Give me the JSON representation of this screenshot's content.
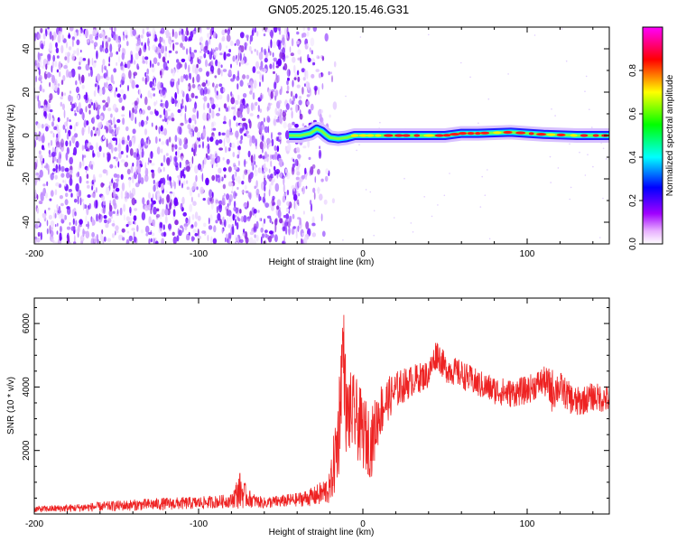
{
  "title": "GN05.2025.120.15.46.G31",
  "chart_data": [
    {
      "type": "heatmap",
      "xlabel": "Height of straight line (km)",
      "ylabel": "Frequency (Hz)",
      "xlim": [
        -200,
        150
      ],
      "ylim": [
        -50,
        50
      ],
      "xticks": [
        -200,
        -100,
        0,
        100
      ],
      "yticks": [
        -40,
        -20,
        0,
        20,
        40
      ],
      "colorbar": {
        "label": "Normalized spectral amplitude",
        "range": [
          0,
          1
        ],
        "ticks": [
          "0.0",
          "0.2",
          "0.4",
          "0.6",
          "0.8"
        ],
        "colormap": [
          "#ffffff",
          "#c000ff",
          "#0000ff",
          "#00ffff",
          "#00ff00",
          "#ffff00",
          "#ff0000",
          "#ff00ff"
        ]
      },
      "noise_region_x": [
        -200,
        -15
      ],
      "signal_trace": {
        "x": [
          -45,
          -38,
          -35,
          -32,
          -30,
          -28,
          -25,
          -22,
          -20,
          -15,
          -10,
          -5,
          0,
          10,
          30,
          50,
          60,
          70,
          90,
          110,
          130,
          150
        ],
        "y": [
          0,
          0,
          0.5,
          1,
          2,
          3,
          2,
          0,
          -1,
          -1.5,
          -1,
          0,
          0,
          0,
          0,
          0,
          1,
          1,
          1.5,
          0.5,
          0,
          0
        ]
      },
      "grid": false
    },
    {
      "type": "line",
      "xlabel": "Height of straight line (km)",
      "ylabel": "SNR (10 * v/v)",
      "xlim": [
        -200,
        150
      ],
      "ylim": [
        0,
        6800
      ],
      "xticks": [
        -200,
        -100,
        0,
        100
      ],
      "yticks": [
        2000,
        4000,
        6000
      ],
      "series": [
        {
          "color": "#ee2222",
          "x": [
            -200,
            -180,
            -160,
            -140,
            -120,
            -100,
            -90,
            -80,
            -75,
            -70,
            -65,
            -60,
            -50,
            -40,
            -30,
            -25,
            -20,
            -15,
            -12,
            -10,
            -8,
            -5,
            0,
            5,
            10,
            15,
            20,
            30,
            40,
            45,
            50,
            60,
            70,
            80,
            90,
            100,
            110,
            115,
            120,
            125,
            130,
            135,
            140,
            150
          ],
          "y": [
            150,
            180,
            230,
            280,
            320,
            350,
            380,
            420,
            750,
            500,
            400,
            350,
            400,
            450,
            550,
            650,
            800,
            2400,
            5500,
            3000,
            3200,
            3100,
            2600,
            2200,
            3200,
            3600,
            3900,
            4200,
            4400,
            5100,
            4600,
            4400,
            4100,
            3900,
            3800,
            3900,
            4200,
            3900,
            4000,
            3700,
            3500,
            3600,
            3700,
            3600
          ],
          "amplitude": [
            100,
            120,
            150,
            180,
            200,
            200,
            200,
            220,
            600,
            300,
            200,
            180,
            200,
            220,
            300,
            400,
            500,
            1600,
            1500,
            1400,
            1300,
            1300,
            1200,
            1100,
            900,
            700,
            600,
            500,
            450,
            500,
            450,
            450,
            450,
            450,
            450,
            450,
            450,
            700,
            500,
            500,
            500,
            450,
            450,
            450
          ]
        }
      ],
      "grid": false
    }
  ]
}
